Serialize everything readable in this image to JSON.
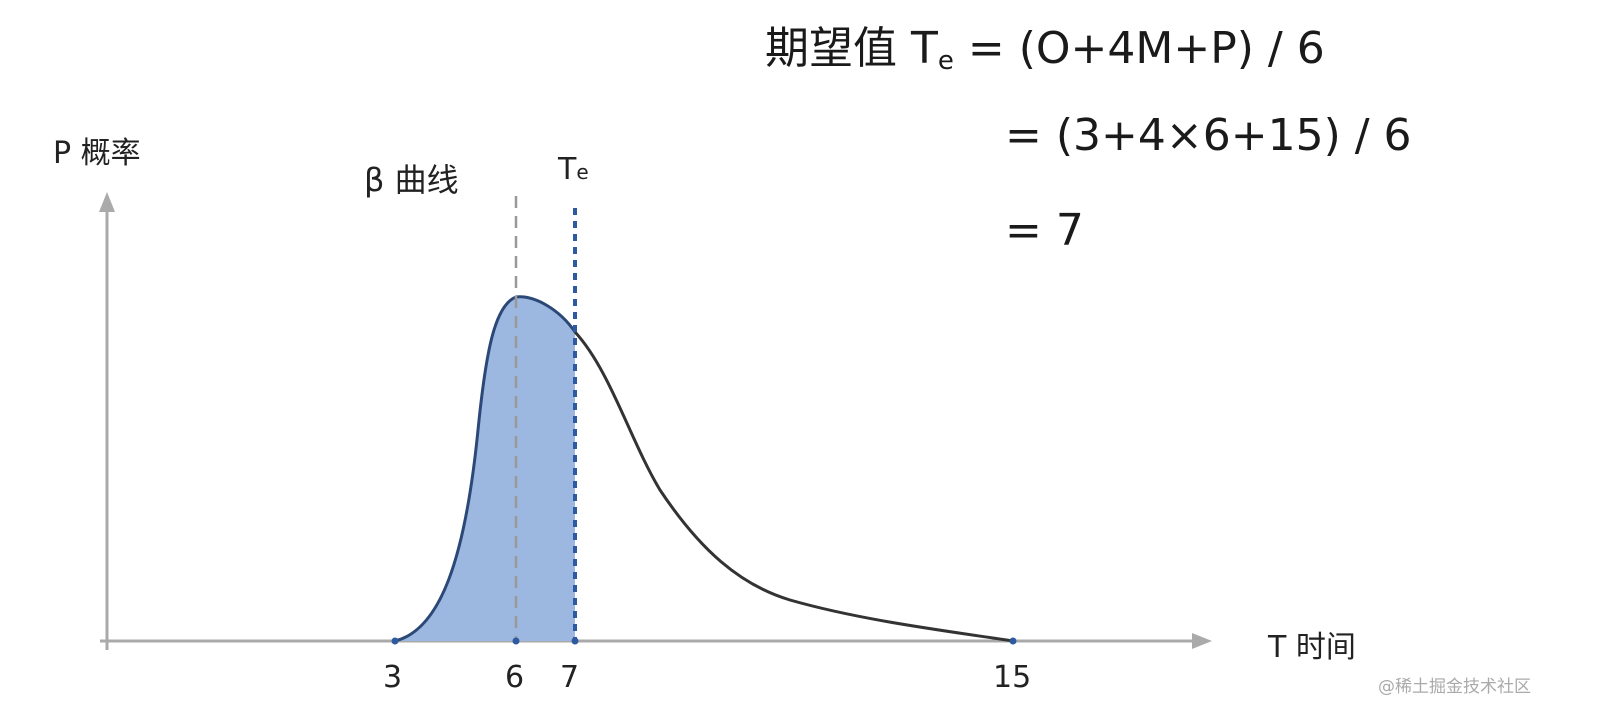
{
  "formula": {
    "line1_prefix": "期望值 T",
    "line1_sub": "e",
    "line1_rest": " =  (O+4M+P) / 6",
    "line2": "=  (3+4×6+15) / 6",
    "line3": "=   7"
  },
  "axes": {
    "y_label": "P 概率",
    "x_label": "T 时间"
  },
  "curve_label": "β 曲线",
  "te_label": "T",
  "te_sub": "e",
  "ticks": [
    "3",
    "6",
    "7",
    "15"
  ],
  "markers": {
    "optimistic": 3,
    "most_likely": 6,
    "expected": 7,
    "pessimistic": 15
  },
  "colors": {
    "fill": "#9cb8e0",
    "left_stroke": "#2c4877",
    "curve": "#333333",
    "te_line": "#2d5aa0",
    "mode_line": "#999999",
    "axis": "#aaaaaa"
  },
  "watermark": "@稀土掘金技术社区"
}
